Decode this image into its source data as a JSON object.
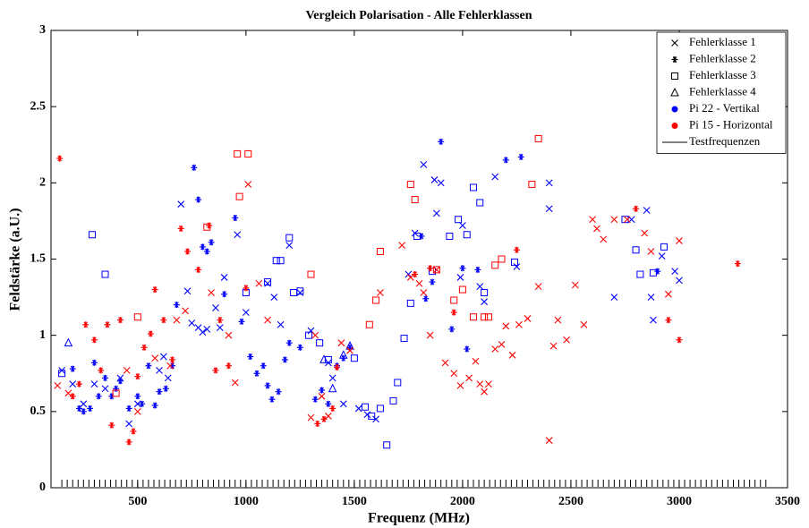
{
  "chart_data": {
    "type": "scatter",
    "title": "Vergleich Polarisation - Alle Fehlerklassen",
    "x_label": "Frequenz (MHz)",
    "y_label": "Feldstärke (a.U.)",
    "xlim": [
      100,
      3500
    ],
    "xticks": [
      500,
      1000,
      1500,
      2000,
      2500,
      3000,
      3500
    ],
    "ylim": [
      0,
      3
    ],
    "yticks": [
      0,
      0.5,
      1,
      1.5,
      2,
      2.5,
      3
    ],
    "legend_position": "upper right",
    "legend": [
      {
        "name": "Fehlerklasse 1",
        "marker": "x",
        "color": "#000000"
      },
      {
        "name": "Fehlerklasse 2",
        "marker": "star",
        "color": "#000000"
      },
      {
        "name": "Fehlerklasse 3",
        "marker": "square",
        "color": "#000000"
      },
      {
        "name": "Fehlerklasse 4",
        "marker": "triangle",
        "color": "#000000"
      },
      {
        "name": "Pi 22 - Vertikal",
        "marker": "dot",
        "color": "#0000ff"
      },
      {
        "name": "Pi 15 - Horizontal",
        "marker": "dot",
        "color": "#ff0000"
      },
      {
        "name": "Testfrequenzen",
        "marker": "line",
        "color": "#000000"
      }
    ],
    "series": [
      {
        "marker": "x",
        "color": "#0000ff",
        "x": [
          700,
          730,
          750,
          780,
          800,
          820,
          860,
          880,
          900,
          960,
          1000,
          1100,
          1130,
          1160,
          1200,
          1250,
          1300,
          1380,
          1400,
          1450,
          1520,
          1560,
          1600,
          1750,
          1780,
          1820,
          1870,
          1880,
          1900,
          1990,
          2000,
          2080,
          2100,
          2150,
          2250,
          2400,
          2400,
          2700,
          2780,
          2850,
          2870,
          2880,
          2920,
          2980,
          3000,
          150,
          200,
          250,
          300,
          350,
          420,
          460,
          500,
          600,
          620,
          640
        ],
        "values": [
          1.86,
          1.29,
          1.08,
          1.05,
          1.02,
          1.04,
          1.18,
          1.05,
          1.38,
          1.66,
          1.15,
          1.34,
          1.25,
          1.07,
          1.59,
          1.28,
          1.03,
          0.82,
          0.72,
          0.55,
          0.52,
          0.48,
          0.45,
          1.4,
          1.67,
          2.12,
          2.02,
          1.8,
          2.0,
          1.38,
          1.72,
          1.32,
          1.22,
          2.04,
          1.45,
          2.0,
          1.83,
          1.25,
          1.76,
          1.82,
          1.25,
          1.1,
          1.52,
          1.42,
          1.36,
          0.77,
          0.68,
          0.55,
          0.68,
          0.65,
          0.72,
          0.42,
          0.55,
          0.77,
          0.86,
          0.72
        ]
      },
      {
        "marker": "star",
        "color": "#0000ff",
        "x": [
          200,
          230,
          250,
          280,
          300,
          320,
          350,
          380,
          400,
          420,
          460,
          500,
          520,
          550,
          580,
          600,
          630,
          660,
          680,
          760,
          780,
          800,
          820,
          840,
          900,
          950,
          980,
          1020,
          1050,
          1080,
          1100,
          1120,
          1150,
          1180,
          1200,
          1250,
          1320,
          1350,
          1380,
          1420,
          1450,
          1480,
          1810,
          1830,
          1860,
          1900,
          1950,
          2000,
          2020,
          2070,
          2200,
          2270,
          2900
        ],
        "values": [
          0.78,
          0.52,
          0.5,
          0.52,
          0.82,
          0.6,
          0.72,
          0.6,
          0.65,
          0.7,
          0.52,
          0.6,
          0.55,
          0.8,
          0.54,
          0.63,
          0.65,
          0.8,
          1.2,
          2.1,
          1.89,
          1.58,
          1.55,
          1.61,
          1.27,
          1.77,
          1.09,
          0.86,
          0.75,
          0.8,
          0.67,
          0.58,
          0.63,
          0.84,
          0.95,
          0.92,
          0.58,
          0.64,
          0.55,
          0.8,
          0.85,
          0.92,
          1.65,
          1.24,
          1.35,
          2.27,
          1.04,
          1.44,
          0.91,
          1.43,
          2.15,
          2.17,
          1.42
        ]
      },
      {
        "marker": "square",
        "color": "#0000ff",
        "x": [
          150,
          290,
          350,
          1000,
          1100,
          1140,
          1160,
          1200,
          1220,
          1250,
          1290,
          1340,
          1380,
          1500,
          1550,
          1580,
          1620,
          1650,
          1680,
          1700,
          1730,
          1760,
          1790,
          1860,
          1940,
          1980,
          2020,
          2050,
          2080,
          2100,
          2240,
          2750,
          2800,
          2820,
          2880,
          2930
        ],
        "values": [
          0.75,
          1.66,
          1.4,
          1.28,
          1.35,
          1.49,
          1.49,
          1.64,
          1.28,
          1.29,
          1.0,
          0.95,
          0.84,
          0.85,
          0.53,
          0.47,
          0.52,
          0.28,
          0.57,
          0.69,
          0.98,
          1.21,
          1.65,
          1.42,
          1.65,
          1.76,
          1.66,
          1.97,
          1.87,
          1.28,
          1.48,
          1.76,
          1.56,
          1.4,
          1.41,
          1.58
        ]
      },
      {
        "marker": "triangle",
        "color": "#0000ff",
        "x": [
          180,
          1360,
          1400,
          1450,
          1480
        ],
        "values": [
          0.95,
          0.84,
          0.65,
          0.87,
          0.93
        ]
      },
      {
        "marker": "x",
        "color": "#ff0000",
        "x": [
          130,
          180,
          450,
          500,
          580,
          650,
          680,
          720,
          840,
          920,
          950,
          1010,
          1060,
          1100,
          1300,
          1320,
          1350,
          1380,
          1440,
          1480,
          1620,
          1720,
          1760,
          1800,
          1820,
          1850,
          1880,
          1920,
          1960,
          1990,
          2030,
          2060,
          2080,
          2100,
          2120,
          2150,
          2180,
          2200,
          2230,
          2260,
          2300,
          2350,
          2400,
          2420,
          2440,
          2480,
          2520,
          2560,
          2600,
          2620,
          2650,
          2700,
          2760,
          2840,
          2870,
          2950,
          3000
        ],
        "values": [
          0.67,
          0.62,
          0.77,
          0.5,
          0.85,
          0.8,
          1.1,
          1.16,
          1.28,
          1.0,
          0.69,
          1.99,
          1.34,
          1.1,
          0.46,
          1.0,
          0.6,
          0.47,
          0.95,
          0.9,
          1.28,
          1.59,
          1.38,
          1.34,
          1.28,
          1.0,
          1.43,
          0.82,
          0.75,
          0.67,
          0.72,
          0.83,
          0.68,
          0.63,
          0.68,
          0.91,
          0.94,
          1.06,
          0.87,
          1.07,
          1.11,
          1.32,
          0.31,
          0.93,
          1.1,
          0.97,
          1.33,
          1.07,
          1.76,
          1.7,
          1.63,
          1.76,
          1.76,
          1.67,
          1.55,
          1.27,
          1.62
        ]
      },
      {
        "marker": "star",
        "color": "#ff0000",
        "x": [
          140,
          200,
          230,
          260,
          300,
          330,
          360,
          380,
          420,
          460,
          480,
          500,
          530,
          560,
          580,
          620,
          660,
          700,
          730,
          780,
          830,
          860,
          880,
          920,
          1000,
          1330,
          1360,
          1400,
          1420,
          1780,
          1850,
          1960,
          2250,
          2800,
          2950,
          3000,
          3270
        ],
        "values": [
          2.16,
          0.6,
          0.68,
          1.07,
          0.97,
          0.77,
          1.07,
          0.41,
          1.1,
          0.3,
          0.37,
          0.73,
          0.92,
          1.01,
          1.3,
          1.1,
          0.84,
          1.7,
          1.55,
          1.43,
          1.72,
          0.77,
          1.1,
          0.8,
          1.31,
          0.42,
          0.45,
          0.52,
          0.79,
          1.4,
          1.44,
          1.15,
          1.56,
          1.83,
          1.1,
          0.97,
          1.47
        ]
      },
      {
        "marker": "square",
        "color": "#ff0000",
        "x": [
          400,
          500,
          820,
          960,
          970,
          1010,
          1300,
          1570,
          1600,
          1620,
          1760,
          1780,
          1880,
          1960,
          2000,
          2050,
          2100,
          2120,
          2150,
          2180,
          2320,
          2350
        ],
        "values": [
          0.62,
          1.12,
          1.71,
          2.19,
          1.91,
          2.19,
          1.4,
          1.07,
          1.23,
          1.55,
          1.99,
          1.89,
          1.43,
          1.23,
          1.3,
          1.12,
          1.12,
          1.12,
          1.46,
          1.5,
          1.99,
          2.29
        ]
      }
    ],
    "test_frequencies": [
      150,
      175,
      200,
      225,
      250,
      275,
      300,
      325,
      350,
      375,
      400,
      425,
      450,
      475,
      500,
      525,
      550,
      575,
      600,
      625,
      650,
      675,
      700,
      725,
      750,
      775,
      800,
      825,
      850,
      875,
      900,
      925,
      950,
      975,
      1000,
      1025,
      1050,
      1075,
      1100,
      1125,
      1150,
      1175,
      1200,
      1225,
      1250,
      1275,
      1300,
      1325,
      1350,
      1375,
      1400,
      1425,
      1450,
      1475,
      1500,
      1525,
      1550,
      1575,
      1600,
      1625,
      1650,
      1675,
      1700,
      1725,
      1750,
      1775,
      1800,
      1825,
      1850,
      1875,
      1900,
      1925,
      1950,
      1975,
      2000,
      2025,
      2050,
      2075,
      2100,
      2125,
      2150,
      2175,
      2200,
      2225,
      2250,
      2275,
      2300,
      2325,
      2350,
      2375,
      2400,
      2425,
      2450,
      2475,
      2500,
      2525,
      2550,
      2575,
      2600,
      2625,
      2650,
      2675,
      2700,
      2725,
      2750,
      2775,
      2800,
      2825,
      2850,
      2875,
      2900,
      2925,
      2950,
      2975,
      3000,
      3025,
      3050,
      3075,
      3100,
      3125,
      3150,
      3175,
      3200,
      3225,
      3250,
      3275,
      3300,
      3325,
      3350,
      3375,
      3400
    ]
  }
}
